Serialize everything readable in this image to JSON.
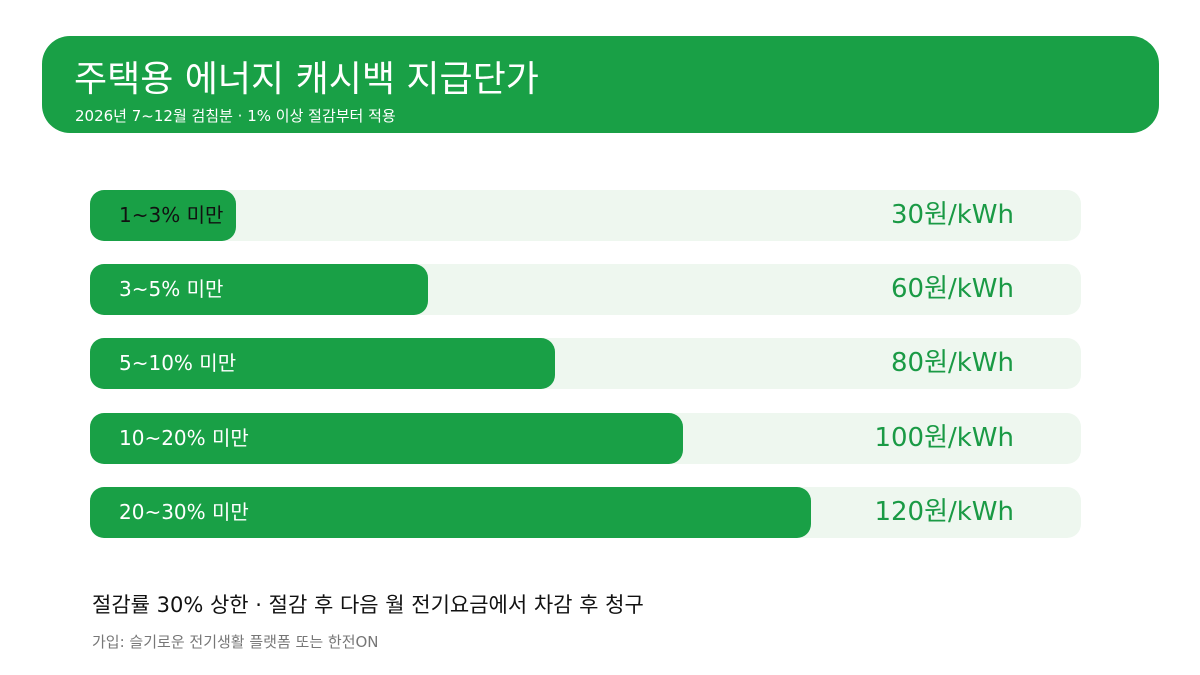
{
  "header": {
    "title": "주택용 에너지 캐시백 지급단가",
    "subtitle": "2026년 7~12월 검침분 · 1% 이상 절감부터 적용"
  },
  "chart_data": {
    "type": "bar",
    "orientation": "horizontal",
    "categories": [
      "1~3% 미만",
      "3~5% 미만",
      "5~10% 미만",
      "10~20% 미만",
      "20~30% 미만"
    ],
    "values": [
      30,
      60,
      80,
      100,
      120
    ],
    "value_labels": [
      "30원/kWh",
      "60원/kWh",
      "80원/kWh",
      "100원/kWh",
      "120원/kWh"
    ],
    "xlim": [
      0,
      165
    ],
    "title": "주택용 에너지 캐시백 지급단가",
    "legend": "none",
    "grid": false,
    "colors": {
      "bar": "#19a046",
      "track": "#eef7ef",
      "value_text": "#1a9a45"
    }
  },
  "notes": {
    "main": "절감률 30% 상한 · 절감 후 다음 월 전기요금에서 차감 후 청구",
    "footnote": "가입: 슬기로운 전기생활 플랫폼 또는 한전ON"
  }
}
